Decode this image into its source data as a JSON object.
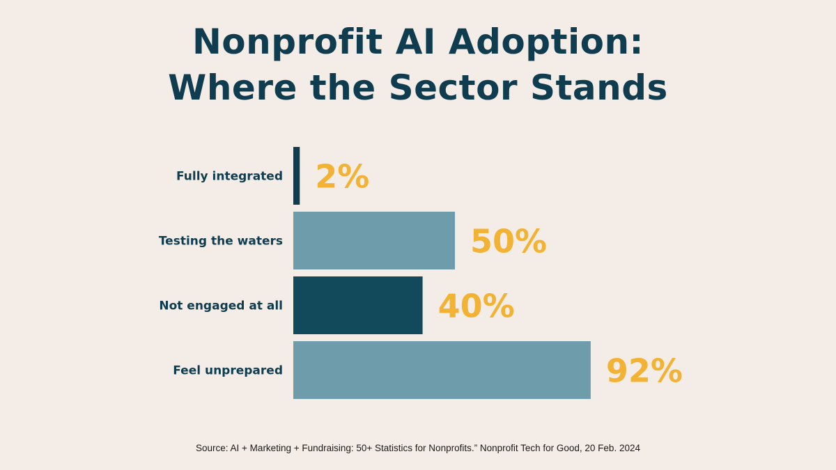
{
  "title_line1": "Nonprofit AI Adoption:",
  "title_line2": "Where the Sector Stands",
  "source": "Source: AI + Marketing + Fundraising: 50+ Statistics for Nonprofits.” Nonprofit Tech for Good, 20 Feb. 2024",
  "colors": {
    "background": "#f4ede7",
    "dark": "#124a5b",
    "light": "#6f9caa",
    "label": "#0f3d4f",
    "value": "#f2b233"
  },
  "chart_data": {
    "type": "bar",
    "orientation": "horizontal",
    "title": "Nonprofit AI Adoption: Where the Sector Stands",
    "categories": [
      "Fully integrated",
      "Testing the waters",
      "Not engaged at all",
      "Feel unprepared"
    ],
    "values": [
      2,
      50,
      40,
      92
    ],
    "value_labels": [
      "2%",
      "50%",
      "40%",
      "92%"
    ],
    "bar_colors": [
      "#0f3d4f",
      "#6f9caa",
      "#124a5b",
      "#6f9caa"
    ],
    "xlabel": "",
    "ylabel": "",
    "xlim": [
      0,
      100
    ],
    "grid": false,
    "legend": "none"
  }
}
